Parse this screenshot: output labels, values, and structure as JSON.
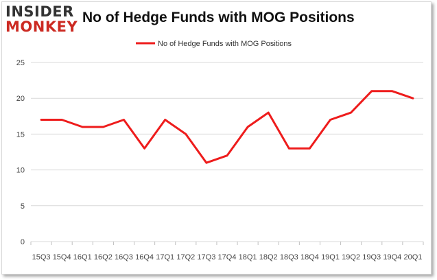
{
  "logo": {
    "line1": "INSIDER",
    "line2": "MONKEY"
  },
  "chart_data": {
    "type": "line",
    "title": "No of Hedge Funds with MOG Positions",
    "xlabel": "",
    "ylabel": "",
    "categories": [
      "15Q3",
      "15Q4",
      "16Q1",
      "16Q2",
      "16Q3",
      "16Q4",
      "17Q1",
      "17Q2",
      "17Q3",
      "17Q4",
      "18Q1",
      "18Q2",
      "18Q3",
      "18Q4",
      "19Q1",
      "19Q2",
      "19Q3",
      "19Q4",
      "20Q1"
    ],
    "series": [
      {
        "name": "No of Hedge Funds with MOG Positions",
        "color": "#ee1c1c",
        "values": [
          17,
          17,
          16,
          16,
          17,
          13,
          17,
          15,
          11,
          12,
          16,
          18,
          13,
          13,
          17,
          18,
          21,
          21,
          20
        ]
      }
    ],
    "ylim": [
      0,
      25
    ],
    "yticks": [
      0,
      5,
      10,
      15,
      20,
      25
    ],
    "grid": true,
    "legend": "top"
  }
}
